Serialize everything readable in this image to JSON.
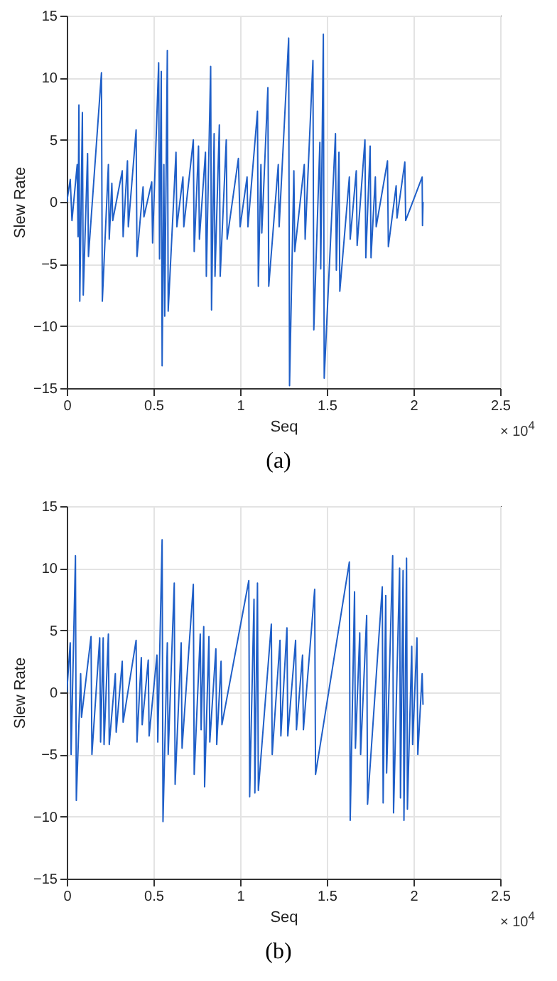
{
  "chart_data": [
    {
      "type": "line",
      "xlabel": "Seq",
      "ylabel": "Slew Rate",
      "annotations": [
        "× 10$^{4}$",
        "(a)"
      ],
      "xlim": [
        0,
        2.5
      ],
      "xticks": [
        0,
        0.5,
        1,
        1.5,
        2,
        2.5
      ],
      "ylim": [
        -15,
        15
      ],
      "yticks": [
        -15,
        -10,
        -5,
        0,
        5,
        10,
        15
      ],
      "grid": true,
      "series": [
        {
          "color": "#1f5fc8",
          "x": [
            0,
            0.02,
            0.03,
            0.06,
            0.065,
            0.07,
            0.075,
            0.09,
            0.095,
            0.12,
            0.125,
            0.2,
            0.205,
            0.24,
            0.245,
            0.26,
            0.265,
            0.32,
            0.325,
            0.35,
            0.355,
            0.4,
            0.405,
            0.44,
            0.445,
            0.49,
            0.495,
            0.53,
            0.535,
            0.545,
            0.55,
            0.56,
            0.565,
            0.58,
            0.585,
            0.63,
            0.635,
            0.67,
            0.675,
            0.73,
            0.735,
            0.76,
            0.765,
            0.8,
            0.805,
            0.83,
            0.835,
            0.85,
            0.855,
            0.88,
            0.885,
            0.92,
            0.925,
            0.99,
            1.0,
            1.04,
            1.045,
            1.1,
            1.105,
            1.12,
            1.125,
            1.16,
            1.165,
            1.22,
            1.225,
            1.28,
            1.285,
            1.31,
            1.315,
            1.37,
            1.375,
            1.42,
            1.425,
            1.46,
            1.465,
            1.48,
            1.485,
            1.55,
            1.555,
            1.57,
            1.575,
            1.63,
            1.635,
            1.67,
            1.675,
            1.72,
            1.725,
            1.75,
            1.755,
            1.78,
            1.785,
            1.85,
            1.855,
            1.9,
            1.905,
            1.95,
            1.955,
            2.05,
            2.052,
            2.055
          ],
          "values": [
            0,
            1.8,
            -1.5,
            3,
            -2.8,
            7.8,
            -8,
            7.2,
            -7.5,
            3.9,
            -4.4,
            10.4,
            -8,
            3,
            -3,
            1.5,
            -1.5,
            2.5,
            -2.8,
            3.3,
            -2,
            5.8,
            -4.4,
            1.2,
            -1.2,
            1.6,
            -3.3,
            11.2,
            -4.6,
            10.5,
            -13.2,
            3,
            -9.2,
            12.2,
            -8.8,
            4,
            -2,
            2,
            -2,
            5,
            -4,
            4.5,
            -3,
            4,
            -6,
            10.9,
            -8.7,
            5.5,
            -6,
            6.2,
            -6,
            5,
            -3,
            3.5,
            -2,
            2,
            -2,
            7.3,
            -6.8,
            3,
            -2.5,
            9.2,
            -6.8,
            3,
            -2,
            13.2,
            -14.8,
            2.5,
            -4,
            3,
            -3,
            11.4,
            -10.3,
            4.8,
            -5.4,
            13.5,
            -14.2,
            5.5,
            -5.5,
            4,
            -7.2,
            2,
            -3,
            2.5,
            -3.5,
            5,
            -4.5,
            4.5,
            -4.5,
            2,
            -2,
            3.3,
            -3.6,
            1.3,
            -1.3,
            3.2,
            -1.5,
            2,
            -1.9,
            0
          ]
        }
      ]
    },
    {
      "type": "line",
      "xlabel": "Seq",
      "ylabel": "Slew Rate",
      "annotations": [
        "× 10$^{4}$",
        "(b)"
      ],
      "xlim": [
        0,
        2.5
      ],
      "xticks": [
        0,
        0.5,
        1,
        1.5,
        2,
        2.5
      ],
      "ylim": [
        -15,
        15
      ],
      "yticks": [
        -15,
        -10,
        -5,
        0,
        5,
        10,
        15
      ],
      "grid": true,
      "series": [
        {
          "color": "#1f5fc8",
          "x": [
            0,
            0.02,
            0.025,
            0.05,
            0.055,
            0.08,
            0.085,
            0.14,
            0.145,
            0.19,
            0.195,
            0.21,
            0.215,
            0.24,
            0.245,
            0.28,
            0.285,
            0.32,
            0.325,
            0.4,
            0.405,
            0.43,
            0.435,
            0.47,
            0.475,
            0.52,
            0.525,
            0.55,
            0.555,
            0.58,
            0.585,
            0.62,
            0.625,
            0.66,
            0.665,
            0.73,
            0.735,
            0.77,
            0.775,
            0.79,
            0.795,
            0.82,
            0.825,
            0.86,
            0.865,
            0.89,
            0.895,
            1.05,
            1.055,
            1.08,
            1.085,
            1.1,
            1.105,
            1.18,
            1.185,
            1.23,
            1.235,
            1.27,
            1.275,
            1.32,
            1.325,
            1.36,
            1.365,
            1.43,
            1.435,
            1.63,
            1.635,
            1.66,
            1.665,
            1.69,
            1.695,
            1.73,
            1.735,
            1.82,
            1.825,
            1.84,
            1.845,
            1.88,
            1.885,
            1.92,
            1.925,
            1.94,
            1.945,
            1.96,
            1.965,
            1.99,
            1.995,
            2.02,
            2.025,
            2.05,
            2.055
          ],
          "values": [
            0,
            4,
            -5,
            11,
            -8.7,
            1.5,
            -2,
            4.5,
            -5,
            4.4,
            -4,
            4.4,
            -4.2,
            4.7,
            -4.2,
            1.5,
            -3.2,
            2.5,
            -2.4,
            4.2,
            -4,
            2.8,
            -2.6,
            2.6,
            -3.5,
            3,
            -4,
            12.3,
            -10.4,
            4,
            -5,
            8.8,
            -7.4,
            4,
            -4.5,
            8.7,
            -6.6,
            4.7,
            -3,
            5.3,
            -7.6,
            4.5,
            -4,
            3.5,
            -4.2,
            2.5,
            -2.6,
            9,
            -8.4,
            7.5,
            -8.1,
            8.8,
            -7.9,
            5.5,
            -5,
            4.2,
            -3.5,
            5.2,
            -3.5,
            4.2,
            -3,
            3,
            -3,
            8.3,
            -6.6,
            10.5,
            -10.3,
            8.1,
            -4.5,
            4.8,
            -5,
            6.2,
            -9,
            8.5,
            -8.9,
            7.8,
            -6.5,
            11,
            -9.7,
            10,
            -8.5,
            9.8,
            -10.3,
            10.8,
            -9.4,
            3.7,
            -4.2,
            4.4,
            -5,
            1.5,
            -1
          ]
        }
      ]
    }
  ]
}
